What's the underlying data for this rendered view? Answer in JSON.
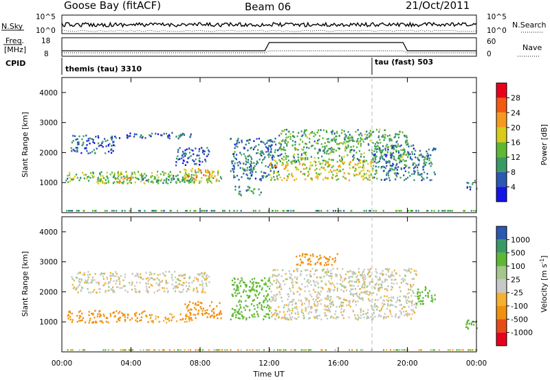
{
  "header": {
    "station": "Goose Bay (fitACF)",
    "beam": "Beam 06",
    "date": "21/Oct/2011"
  },
  "top_panels": {
    "nsky_label": "N.Sky",
    "nsky_ticks": [
      "10^5",
      "10^0"
    ],
    "nsearch_label": "N.Search",
    "nsearch_ticks": [
      "10^5",
      "10^0"
    ],
    "freq_label_1": "Freq.",
    "freq_label_2": "[MHz]",
    "freq_ticks": [
      "18",
      "8"
    ],
    "nave_label": "Nave",
    "nave_ticks": [
      "60",
      "0"
    ],
    "cpid_label": "CPID",
    "cpid_segments": [
      {
        "label": "themis (tau) 3310",
        "start_hour": 0
      },
      {
        "label": "tau (fast) 503",
        "start_hour": 18
      }
    ]
  },
  "axes": {
    "ylabel": "Slant Range [km]",
    "xlabel": "Time UT",
    "y_ticks": [
      "1000",
      "2000",
      "3000",
      "4000"
    ],
    "x_ticks": [
      "00:00",
      "04:00",
      "08:00",
      "12:00",
      "16:00",
      "20:00",
      "00:00"
    ]
  },
  "power_colorbar": {
    "label": "Power [dB]",
    "ticks": [
      "28",
      "24",
      "20",
      "16",
      "12",
      "8",
      "4"
    ],
    "colors": [
      "#e8001c",
      "#f25a12",
      "#f59a1c",
      "#d8cc1a",
      "#5fb832",
      "#3a9a66",
      "#2b58b0",
      "#1414e6"
    ]
  },
  "velocity_colorbar": {
    "label": "Velocity [m s",
    "label_exp": "-1",
    "label_end": "]",
    "ticks": [
      "1000",
      "500",
      "100",
      "25",
      "-25",
      "-100",
      "-500",
      "-1000"
    ],
    "colors": [
      "#2b58b0",
      "#3a9a66",
      "#5fb832",
      "#a4c88c",
      "#c8c8c8",
      "#f5b030",
      "#f0900c",
      "#e84a18",
      "#e8001c"
    ]
  },
  "chart_data": [
    {
      "type": "heatmap",
      "title": "Power [dB]",
      "xlabel": "Time UT",
      "ylabel": "Slant Range [km]",
      "xlim": [
        0,
        24
      ],
      "ylim": [
        0,
        4500
      ],
      "regions": [
        {
          "t": [
            0.1,
            0.6
          ],
          "r": [
            1000,
            1300
          ],
          "power": 12
        },
        {
          "t": [
            0.3,
            9.2
          ],
          "r": [
            1000,
            1400
          ],
          "power": 14
        },
        {
          "t": [
            2.0,
            4.0
          ],
          "r": [
            1000,
            1200
          ],
          "power": 20
        },
        {
          "t": [
            4.5,
            7.8
          ],
          "r": [
            1000,
            1300
          ],
          "power": 10
        },
        {
          "t": [
            7.0,
            9.0
          ],
          "r": [
            1100,
            1500
          ],
          "power": 22
        },
        {
          "t": [
            0.5,
            3.0
          ],
          "r": [
            2000,
            2600
          ],
          "power": 6
        },
        {
          "t": [
            3.0,
            7.5
          ],
          "r": [
            2500,
            2700
          ],
          "power": 6
        },
        {
          "t": [
            6.5,
            8.5
          ],
          "r": [
            1600,
            2200
          ],
          "power": 6
        },
        {
          "t": [
            9.7,
            12.5
          ],
          "r": [
            1100,
            2500
          ],
          "power": 8
        },
        {
          "t": [
            12.0,
            18.0
          ],
          "r": [
            1100,
            1800
          ],
          "power": 18
        },
        {
          "t": [
            12.5,
            20.0
          ],
          "r": [
            1700,
            2800
          ],
          "power": 12
        },
        {
          "t": [
            18.0,
            20.5
          ],
          "r": [
            1100,
            2300
          ],
          "power": 8
        },
        {
          "t": [
            20.5,
            21.6
          ],
          "r": [
            1100,
            2200
          ],
          "power": 8
        },
        {
          "t": [
            23.4,
            24.0
          ],
          "r": [
            800,
            1100
          ],
          "power": 6
        },
        {
          "t": [
            10.0,
            11.5
          ],
          "r": [
            600,
            900
          ],
          "power": 10
        }
      ]
    },
    {
      "type": "heatmap",
      "title": "Velocity [m s-1]",
      "xlabel": "Time UT",
      "ylabel": "Slant Range [km]",
      "xlim": [
        0,
        24
      ],
      "ylim": [
        0,
        4500
      ],
      "regions": [
        {
          "t": [
            0.3,
            5.0
          ],
          "r": [
            1000,
            1400
          ],
          "velocity": -150
        },
        {
          "t": [
            5.0,
            7.5
          ],
          "r": [
            1000,
            1300
          ],
          "velocity": -100
        },
        {
          "t": [
            7.0,
            9.2
          ],
          "r": [
            1100,
            1700
          ],
          "velocity": -300
        },
        {
          "t": [
            0.5,
            8.5
          ],
          "r": [
            2000,
            2700
          ],
          "velocity": 0
        },
        {
          "t": [
            9.7,
            12.0
          ],
          "r": [
            1100,
            2500
          ],
          "velocity": 150
        },
        {
          "t": [
            12.0,
            20.5
          ],
          "r": [
            1100,
            2800
          ],
          "velocity": 0
        },
        {
          "t": [
            20.5,
            21.6
          ],
          "r": [
            1600,
            2200
          ],
          "velocity": 200
        },
        {
          "t": [
            23.3,
            24.0
          ],
          "r": [
            700,
            1100
          ],
          "velocity": 200
        },
        {
          "t": [
            13.5,
            16.0
          ],
          "r": [
            2900,
            3300
          ],
          "velocity": -150
        }
      ]
    }
  ]
}
